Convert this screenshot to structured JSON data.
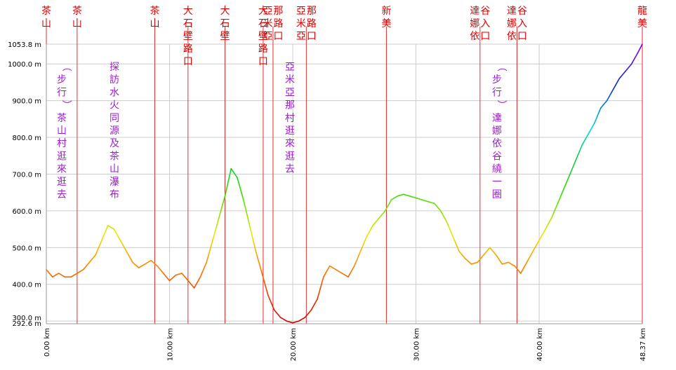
{
  "chart_data": {
    "type": "line",
    "title": "",
    "xlabel": "",
    "ylabel": "",
    "xlim": [
      0,
      48.37
    ],
    "ylim": [
      292.6,
      1053.8
    ],
    "x_ticks": [
      0,
      10,
      20,
      30,
      40,
      48.37
    ],
    "x_tick_labels": [
      "0.00 km",
      "10.00 km",
      "20.00 km",
      "30.00 km",
      "40.00 km",
      "48.37 km"
    ],
    "y_ticks": [
      292.6,
      300,
      400,
      500,
      600,
      700,
      800,
      900,
      1000,
      1053.8
    ],
    "y_tick_labels": [
      "292.6 m",
      "300.0 m",
      "400.0 m",
      "500.0 m",
      "600.0 m",
      "700.0 m",
      "800.0 m",
      "900.0 m",
      "1000.0 m",
      "1053.8 m"
    ],
    "grid": true,
    "colors": {
      "waypoint_line": "#e03030",
      "waypoint_text": "#e00000",
      "note_text": "#9b1fd0",
      "grid": "#cccccc"
    },
    "series": [
      {
        "x": [
          0,
          0.5,
          1,
          1.5,
          2,
          2.5,
          3,
          3.5,
          4,
          4.5,
          5,
          5.5,
          6,
          6.5,
          7,
          7.5,
          8,
          8.5,
          9,
          9.5,
          10,
          10.5,
          11,
          11.5,
          12,
          12.5,
          13,
          13.5,
          14,
          14.5,
          15,
          15.5,
          16,
          16.5,
          17,
          17.5,
          18,
          18.5,
          19,
          19.5,
          20,
          20.5,
          21,
          21.5,
          22,
          22.5,
          23,
          23.5,
          24,
          24.5,
          25,
          25.5,
          26,
          26.5,
          27,
          27.5,
          28,
          28.5,
          29,
          29.5,
          30,
          30.5,
          31,
          31.5,
          32,
          32.5,
          33,
          33.5,
          34,
          34.5,
          35,
          35.5,
          36,
          36.5,
          37,
          37.5,
          38,
          38.5,
          39,
          39.5,
          40,
          40.5,
          41,
          41.5,
          42,
          42.5,
          43,
          43.5,
          44,
          44.5,
          45,
          45.5,
          46,
          46.5,
          47,
          47.5,
          48,
          48.37
        ],
        "y": [
          440,
          420,
          430,
          420,
          420,
          430,
          440,
          460,
          480,
          520,
          560,
          550,
          520,
          490,
          460,
          445,
          455,
          465,
          450,
          430,
          410,
          425,
          430,
          410,
          390,
          420,
          460,
          520,
          580,
          640,
          715,
          690,
          630,
          560,
          490,
          430,
          370,
          330,
          310,
          300,
          295,
          300,
          310,
          330,
          360,
          420,
          450,
          440,
          430,
          420,
          450,
          490,
          530,
          560,
          580,
          600,
          630,
          640,
          645,
          640,
          635,
          630,
          625,
          620,
          600,
          570,
          530,
          490,
          470,
          455,
          460,
          480,
          500,
          480,
          455,
          460,
          450,
          430,
          460,
          490,
          520,
          550,
          580,
          620,
          660,
          700,
          740,
          780,
          810,
          840,
          880,
          900,
          930,
          960,
          980,
          1000,
          1030,
          1053.8
        ]
      }
    ],
    "waypoints": [
      {
        "x": 0,
        "label": "茶山"
      },
      {
        "x": 2.5,
        "label": "茶山"
      },
      {
        "x": 8.8,
        "label": "茶山"
      },
      {
        "x": 11.5,
        "label": "大石壁路口"
      },
      {
        "x": 14.5,
        "label": "大石壁"
      },
      {
        "x": 17.6,
        "label": "大石壁路口"
      },
      {
        "x": 18.4,
        "label": "亞米亞那路口"
      },
      {
        "x": 21.1,
        "label": "亞米亞那路口"
      },
      {
        "x": 27.6,
        "label": "新美"
      },
      {
        "x": 35.2,
        "label": "達娜依谷入口"
      },
      {
        "x": 38.2,
        "label": "達娜依谷入口"
      },
      {
        "x": 48.37,
        "label": "龍美"
      }
    ],
    "annotations": [
      {
        "text": "（步行）茶山村逛來逛去"
      },
      {
        "text": "探訪水火同源及茶山瀑布"
      },
      {
        "text": "亞米亞那村逛來逛去"
      },
      {
        "text": "（步行）達娜依谷繞一圈"
      }
    ]
  }
}
